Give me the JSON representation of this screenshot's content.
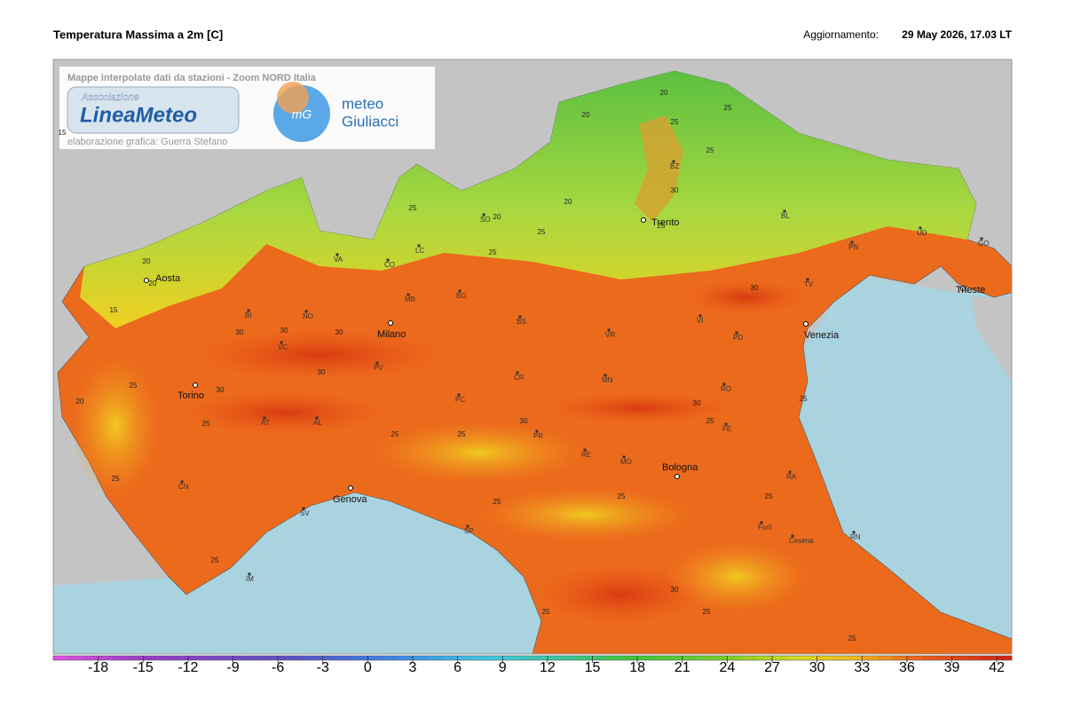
{
  "header": {
    "title": "Temperatura Massima a 2m [C]",
    "update_label": "Aggiornamento:",
    "update_time": "29 May 2026, 17.03 LT"
  },
  "logos": {
    "caption": "Mappe interpolate dati da stazioni - Zoom NORD Italia",
    "association": "Associazione",
    "brand": "LineaMeteo",
    "credit": "elaborazione grafica: Guerra Stefano",
    "partner_line1": "meteo",
    "partner_line2": "Giuliacci"
  },
  "cities": [
    "Aosta",
    "Torino",
    "Milano",
    "Trento",
    "Trieste",
    "Venezia",
    "Genova",
    "Bologna"
  ],
  "provinces": [
    "BI",
    "VC",
    "NO",
    "VA",
    "CO",
    "LC",
    "SO",
    "BG",
    "MB",
    "BS",
    "PV",
    "PC",
    "CR",
    "MN",
    "VR",
    "VI",
    "PD",
    "TV",
    "BL",
    "PN",
    "UD",
    "GO",
    "BZ",
    "AT",
    "AL",
    "CN",
    "SV",
    "IM",
    "SP",
    "PR",
    "RE",
    "MO",
    "FE",
    "RO",
    "RA",
    "Forlì",
    "Cesena",
    "RN"
  ],
  "contours": [
    15,
    20,
    20,
    15,
    25,
    20,
    25,
    30,
    30,
    30,
    30,
    30,
    25,
    25,
    25,
    25,
    25,
    20,
    25,
    20,
    25,
    20,
    25,
    30,
    20,
    25,
    25,
    30,
    30,
    25,
    25,
    25,
    25,
    30,
    25,
    25,
    25,
    25,
    30,
    25
  ],
  "colorbar": {
    "lim": [
      -21,
      43
    ],
    "ticks": [
      -18,
      -15,
      -12,
      -9,
      -6,
      -3,
      0,
      3,
      6,
      9,
      12,
      15,
      18,
      21,
      24,
      27,
      30,
      33,
      36,
      39,
      42
    ]
  }
}
